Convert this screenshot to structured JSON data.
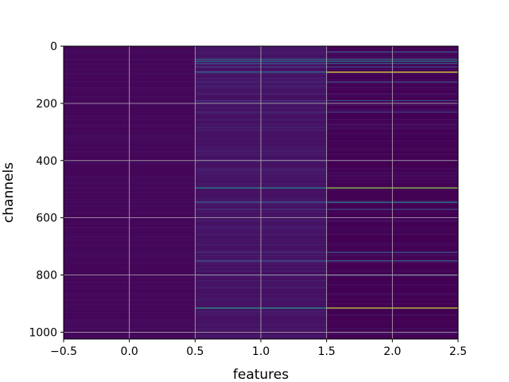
{
  "chart_data": {
    "type": "heatmap",
    "title": "",
    "xlabel": "features",
    "ylabel": "channels",
    "xlim": [
      -0.5,
      2.5
    ],
    "ylim": [
      1024,
      0
    ],
    "x_ticks": [
      "−0.5",
      "0.0",
      "0.5",
      "1.0",
      "1.5",
      "2.0",
      "2.5"
    ],
    "x_tick_values": [
      -0.5,
      0.0,
      0.5,
      1.0,
      1.5,
      2.0,
      2.5
    ],
    "y_ticks": [
      "0",
      "200",
      "400",
      "600",
      "800",
      "1000"
    ],
    "y_tick_values": [
      0,
      200,
      400,
      600,
      800,
      1000
    ],
    "grid": true,
    "colormap": "viridis",
    "columns": [
      0,
      1,
      2
    ],
    "rows": 1024,
    "background_level": [
      0.02,
      0.06,
      0.0
    ],
    "stripes": [
      {
        "channel": 20,
        "levels": [
          0.03,
          0.1,
          0.35
        ]
      },
      {
        "channel": 45,
        "levels": [
          0.05,
          0.4,
          0.45
        ]
      },
      {
        "channel": 52,
        "levels": [
          0.03,
          0.5,
          0.6
        ]
      },
      {
        "channel": 60,
        "levels": [
          0.04,
          0.3,
          0.4
        ]
      },
      {
        "channel": 72,
        "levels": [
          0.03,
          0.25,
          0.3
        ]
      },
      {
        "channel": 90,
        "levels": [
          0.04,
          0.45,
          0.98
        ]
      },
      {
        "channel": 125,
        "levels": [
          0.03,
          0.15,
          0.3
        ]
      },
      {
        "channel": 190,
        "levels": [
          0.03,
          0.2,
          0.3
        ]
      },
      {
        "channel": 230,
        "levels": [
          0.03,
          0.15,
          0.25
        ]
      },
      {
        "channel": 495,
        "levels": [
          0.04,
          0.6,
          0.9
        ]
      },
      {
        "channel": 545,
        "levels": [
          0.05,
          0.35,
          0.6
        ]
      },
      {
        "channel": 570,
        "levels": [
          0.03,
          0.2,
          0.3
        ]
      },
      {
        "channel": 720,
        "levels": [
          0.04,
          0.2,
          0.35
        ]
      },
      {
        "channel": 750,
        "levels": [
          0.03,
          0.3,
          0.4
        ]
      },
      {
        "channel": 800,
        "levels": [
          0.03,
          0.2,
          0.35
        ]
      },
      {
        "channel": 915,
        "levels": [
          0.03,
          0.7,
          0.95
        ]
      },
      {
        "channel": 1000,
        "levels": [
          0.08,
          0.05,
          0.1
        ]
      }
    ]
  }
}
